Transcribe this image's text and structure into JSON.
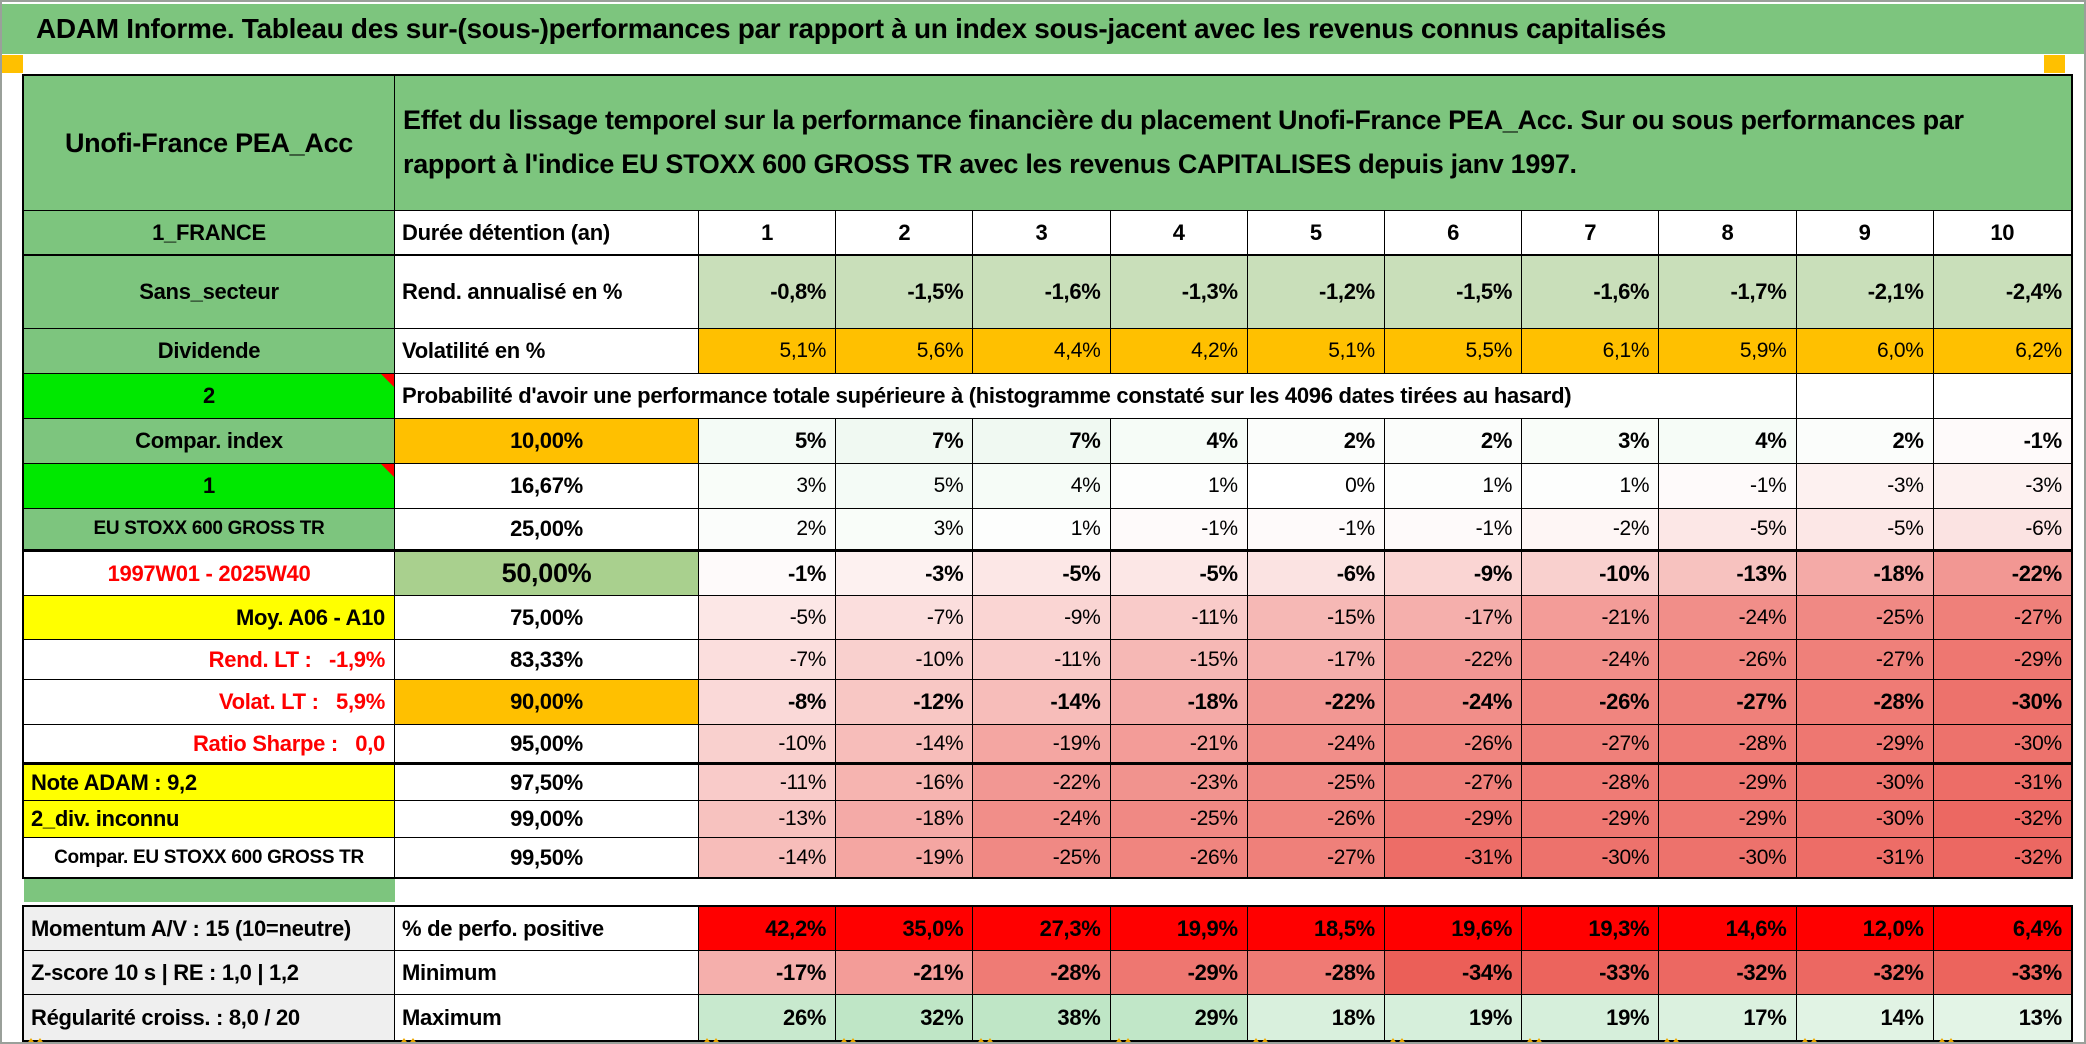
{
  "title": "ADAM Informe. Tableau des sur-(sous-)performances par rapport à un index sous-jacent avec les revenus connus capitalisés",
  "colors": {
    "green": "#7dc57e",
    "bright_green": "#00e800",
    "orange": "#ffc000",
    "yellow": "#ffff00",
    "red": "#ff0000",
    "light_green_row": "#c9dfba",
    "mid_green": "#a9d08e",
    "gray_cell": "#efefef",
    "scale_red_max": "#eb5f58",
    "scale_green_max": "#bfe6c6",
    "marker_orange": "#eda800",
    "red_text": "#ff0000"
  },
  "sheet": {
    "product": "Unofi-France PEA_Acc",
    "description": "Effet du lissage temporel sur la performance financière du placement Unofi-France PEA_Acc. Sur ou sous performances par rapport à l'indice EU STOXX 600 GROSS TR avec les revenus CAPITALISES depuis janv 1997.",
    "duration_header": {
      "a": "1_FRANCE",
      "b": "Durée détention (an)",
      "columns": [
        "1",
        "2",
        "3",
        "4",
        "5",
        "6",
        "7",
        "8",
        "9",
        "10"
      ]
    },
    "perf_rows": [
      {
        "a": "Sans_secteur",
        "b": "Rend. annualisé en %",
        "cell_bg": "light_green_row",
        "bold": true,
        "values": [
          "-0,8%",
          "-1,5%",
          "-1,6%",
          "-1,3%",
          "-1,2%",
          "-1,5%",
          "-1,6%",
          "-1,7%",
          "-2,1%",
          "-2,4%"
        ]
      },
      {
        "a": "Dividende",
        "b": "Volatilité en %",
        "cell_bg": "orange",
        "bold": false,
        "values": [
          "5,1%",
          "5,6%",
          "4,4%",
          "4,2%",
          "5,1%",
          "5,5%",
          "6,1%",
          "5,9%",
          "6,0%",
          "6,2%"
        ]
      }
    ],
    "probability_header": {
      "a": "2",
      "text": "Probabilité d'avoir une performance totale supérieure à (histogramme constaté sur les 4096 dates tirées au hasard)"
    },
    "prob_rows": [
      {
        "a": "Compar. index",
        "a_bg": "green",
        "b": "10,00%",
        "b_bg": "orange",
        "bold": true,
        "values": [
          "5%",
          "7%",
          "7%",
          "4%",
          "2%",
          "2%",
          "3%",
          "4%",
          "2%",
          "-1%"
        ]
      },
      {
        "a": "1",
        "a_bg": "bright_green",
        "a_note": true,
        "b": "16,67%",
        "bold": false,
        "values": [
          "3%",
          "5%",
          "4%",
          "1%",
          "0%",
          "1%",
          "1%",
          "-1%",
          "-3%",
          "-3%"
        ]
      },
      {
        "a": "EU STOXX 600 GROSS TR",
        "a_bg": "green",
        "a_small": true,
        "b": "25,00%",
        "bold": false,
        "values": [
          "2%",
          "3%",
          "1%",
          "-1%",
          "-1%",
          "-1%",
          "-2%",
          "-5%",
          "-5%",
          "-6%"
        ]
      },
      {
        "a": "1997W01 - 2025W40",
        "a_color": "red_text",
        "b": "50,00%",
        "b_bg": "mid_green",
        "b_big": true,
        "bold": true,
        "thick_top": true,
        "values": [
          "-1%",
          "-3%",
          "-5%",
          "-5%",
          "-6%",
          "-9%",
          "-10%",
          "-13%",
          "-18%",
          "-22%"
        ]
      },
      {
        "a": "Moy. A06 - A10",
        "a_bg": "yellow",
        "a_align": "right",
        "b": "75,00%",
        "bold": false,
        "values": [
          "-5%",
          "-7%",
          "-9%",
          "-11%",
          "-15%",
          "-17%",
          "-21%",
          "-24%",
          "-25%",
          "-27%"
        ]
      },
      {
        "a": "Rend. LT :   -1,9%",
        "a_color": "red_text",
        "a_align": "right",
        "b": "83,33%",
        "bold": false,
        "values": [
          "-7%",
          "-10%",
          "-11%",
          "-15%",
          "-17%",
          "-22%",
          "-24%",
          "-26%",
          "-27%",
          "-29%"
        ]
      },
      {
        "a": "Volat. LT :   5,9%",
        "a_color": "red_text",
        "a_align": "right",
        "b": "90,00%",
        "b_bg": "orange",
        "bold": true,
        "values": [
          "-8%",
          "-12%",
          "-14%",
          "-18%",
          "-22%",
          "-24%",
          "-26%",
          "-27%",
          "-28%",
          "-30%"
        ]
      },
      {
        "a": "Ratio Sharpe :   0,0",
        "a_color": "red_text",
        "a_align": "right",
        "b": "95,00%",
        "bold": false,
        "thick_bottom": true,
        "values": [
          "-10%",
          "-14%",
          "-19%",
          "-21%",
          "-24%",
          "-26%",
          "-27%",
          "-28%",
          "-29%",
          "-30%"
        ]
      },
      {
        "a": "Note ADAM : 9,2",
        "a_bg": "yellow",
        "a_align": "left",
        "b": "97,50%",
        "bold": false,
        "values": [
          "-11%",
          "-16%",
          "-22%",
          "-23%",
          "-25%",
          "-27%",
          "-28%",
          "-29%",
          "-30%",
          "-31%"
        ]
      },
      {
        "a": "2_div. inconnu",
        "a_bg": "yellow",
        "a_align": "left",
        "b": "99,00%",
        "bold": false,
        "values": [
          "-13%",
          "-18%",
          "-24%",
          "-25%",
          "-26%",
          "-29%",
          "-29%",
          "-29%",
          "-30%",
          "-32%"
        ]
      },
      {
        "a": "Compar. EU STOXX 600 GROSS TR",
        "a_small": true,
        "b": "99,50%",
        "bold": false,
        "values": [
          "-14%",
          "-19%",
          "-25%",
          "-26%",
          "-27%",
          "-31%",
          "-30%",
          "-30%",
          "-31%",
          "-32%"
        ]
      }
    ],
    "stats_rows": [
      {
        "a": "Momentum A/V : 15 (10=neutre)",
        "b": "% de perfo. positive",
        "fixed_bg": "red",
        "bold": true,
        "values": [
          "42,2%",
          "35,0%",
          "27,3%",
          "19,9%",
          "18,5%",
          "19,6%",
          "19,3%",
          "14,6%",
          "12,0%",
          "6,4%"
        ]
      },
      {
        "a": "Z-score 10 s | RE : 1,0 | 1,2",
        "b": "Minimum",
        "scale": true,
        "bold": true,
        "values": [
          "-17%",
          "-21%",
          "-28%",
          "-29%",
          "-28%",
          "-34%",
          "-33%",
          "-32%",
          "-32%",
          "-33%"
        ]
      },
      {
        "a": "Régularité croiss. : 8,0 / 20",
        "b": "Maximum",
        "scale": true,
        "bold": true,
        "values": [
          "26%",
          "32%",
          "38%",
          "29%",
          "18%",
          "19%",
          "19%",
          "17%",
          "14%",
          "13%"
        ]
      }
    ]
  }
}
